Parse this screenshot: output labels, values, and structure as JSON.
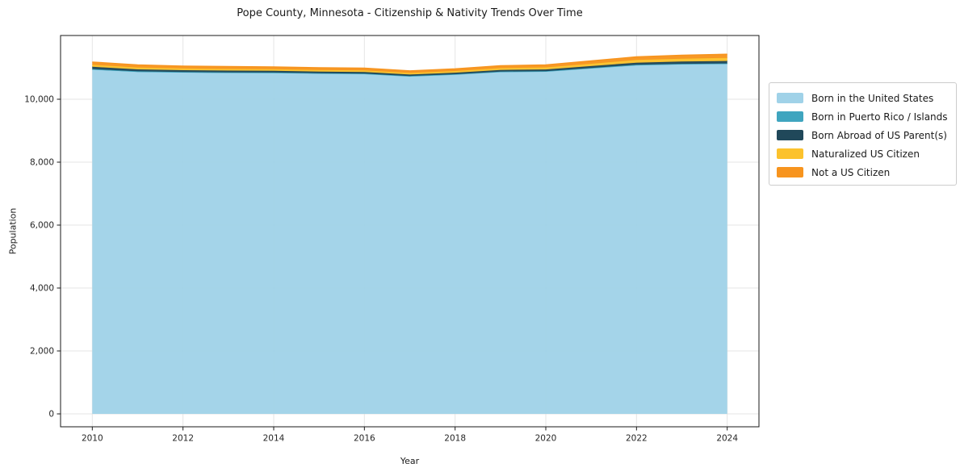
{
  "chart_data": {
    "type": "area",
    "stacked": true,
    "title": "Pope County, Minnesota - Citizenship & Nativity Trends Over Time",
    "xlabel": "Year",
    "ylabel": "Population",
    "x": [
      2010,
      2011,
      2012,
      2013,
      2014,
      2015,
      2016,
      2017,
      2018,
      2019,
      2020,
      2021,
      2022,
      2023,
      2024
    ],
    "series": [
      {
        "name": "Born in the United States",
        "color": "#a0d2e8",
        "values": [
          10940,
          10870,
          10850,
          10840,
          10835,
          10815,
          10805,
          10730,
          10785,
          10870,
          10880,
          10980,
          11080,
          11110,
          11120
        ]
      },
      {
        "name": "Born in Puerto Rico / Islands",
        "color": "#3fa5bf",
        "values": [
          20,
          18,
          16,
          15,
          14,
          13,
          12,
          10,
          10,
          11,
          12,
          14,
          15,
          16,
          18
        ]
      },
      {
        "name": "Born Abroad of US Parent(s)",
        "color": "#20485a",
        "values": [
          70,
          62,
          58,
          55,
          55,
          52,
          48,
          45,
          48,
          50,
          55,
          60,
          68,
          72,
          78
        ]
      },
      {
        "name": "Naturalized US Citizen",
        "color": "#fcc22d",
        "values": [
          65,
          60,
          55,
          55,
          52,
          50,
          52,
          50,
          55,
          60,
          65,
          75,
          85,
          92,
          100
        ]
      },
      {
        "name": "Not a US Citizen",
        "color": "#f7941e",
        "values": [
          85,
          80,
          72,
          70,
          69,
          68,
          68,
          65,
          67,
          70,
          78,
          86,
          97,
          105,
          112
        ]
      }
    ],
    "xticks": [
      2010,
      2012,
      2014,
      2016,
      2018,
      2020,
      2022,
      2024
    ],
    "yticks": [
      0,
      2000,
      4000,
      6000,
      8000,
      10000
    ],
    "xlim": [
      2009.3,
      2024.7
    ],
    "ylim": [
      -410,
      12026
    ],
    "grid": true,
    "legend_position": "right-top"
  }
}
